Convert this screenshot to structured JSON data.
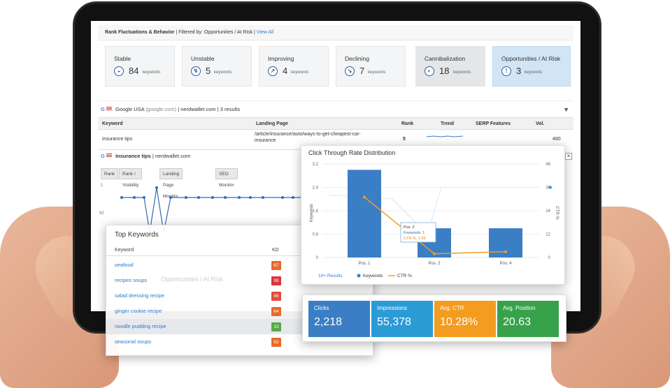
{
  "header": {
    "title": "Rank Fluctuations & Behavior",
    "filter": "| Filtered by: Opportunities / At Risk |",
    "view_all": "View All"
  },
  "cards": [
    {
      "title": "Stable",
      "value": "84",
      "unit": "keywords",
      "icon": "stable-icon"
    },
    {
      "title": "Unstable",
      "value": "5",
      "unit": "keywords",
      "icon": "unstable-icon"
    },
    {
      "title": "Improving",
      "value": "4",
      "unit": "keywords",
      "icon": "improving-icon"
    },
    {
      "title": "Declining",
      "value": "7",
      "unit": "keywords",
      "icon": "declining-icon"
    },
    {
      "title": "Cannibalization",
      "value": "18",
      "unit": "keywords",
      "icon": "cannibalization-icon"
    },
    {
      "title": "Opportunities / At Risk",
      "value": "3",
      "unit": "keywords",
      "icon": "warning-icon"
    }
  ],
  "search_info": {
    "engine": "Google USA",
    "domain_hint": "(google.com)",
    "site": "| nerdwallet.com | 3 results"
  },
  "table": {
    "columns": [
      "Keyword",
      "Landing Page",
      "Rank",
      "Trend",
      "SERP Features",
      "Vol."
    ],
    "row": {
      "keyword": "insurance tips",
      "landing_page": "/article/insurance/auto/ways-to-get-cheapest-car-insurance",
      "rank": "5",
      "volume": "480"
    }
  },
  "sub_panel": {
    "title": "insurance tips",
    "site": "| nerdwallet.com",
    "tabs": [
      "Rank",
      "Rank / Visibility",
      "Landing Page Monitor",
      "SEO Monitor"
    ],
    "y_labels": [
      "1",
      "50"
    ]
  },
  "top_keywords": {
    "title": "Top Keywords",
    "col_keyword": "Keyword",
    "col_kd": "KD",
    "rows": [
      {
        "keyword": "seafood",
        "kd": "67",
        "color": "#e8692a"
      },
      {
        "keyword": "recipes soups",
        "kd": "99",
        "color": "#d9363e"
      },
      {
        "keyword": "salad dressing recipe",
        "kd": "86",
        "color": "#e24a3b"
      },
      {
        "keyword": "ginger cookie recipe",
        "kd": "64",
        "color": "#e8692a"
      },
      {
        "keyword": "noodle pudding recipe",
        "kd": "15",
        "color": "#5aa84a"
      },
      {
        "keyword": "seasonal soups",
        "kd": "62",
        "color": "#e8692a"
      }
    ],
    "ghost_title": "Opportunities / At Risk"
  },
  "ctr_chart": {
    "title": "Click Through Rate Distribution",
    "results_link": "10+ Results",
    "tooltip_title": "Pos. 2",
    "tooltip_keywords": "Keywords: 1",
    "tooltip_ctr": "CTR %: 1.89"
  },
  "chart_data": {
    "type": "bar",
    "title": "Click Through Rate Distribution",
    "categories": [
      "Pos. 1",
      "Pos. 2",
      "Pos. 4"
    ],
    "series": [
      {
        "name": "Keywords",
        "values": [
          3,
          1,
          1
        ],
        "color": "#3a7ec5"
      },
      {
        "name": "CTR %",
        "values": [
          31,
          1.89,
          3
        ],
        "color": "#f39c1f"
      }
    ],
    "ylabel": "Keywords",
    "y2label": "CTR %",
    "ylim": [
      0,
      3.2
    ],
    "y2lim": [
      0,
      48
    ],
    "y_ticks": [
      "3.2",
      "2.4",
      "1.6",
      "0.8",
      "0"
    ],
    "y2_ticks": [
      "48",
      "36",
      "24",
      "12",
      "0"
    ],
    "legend": "bottom"
  },
  "metrics": [
    {
      "label": "Clicks",
      "value": "2,218",
      "color": "#3a7ec5"
    },
    {
      "label": "Impressions",
      "value": "55,378",
      "color": "#2b9bd6"
    },
    {
      "label": "Avg. CTR",
      "value": "10.28%",
      "color": "#f39c1f"
    },
    {
      "label": "Avg. Position",
      "value": "20.63",
      "color": "#37a24a"
    }
  ]
}
